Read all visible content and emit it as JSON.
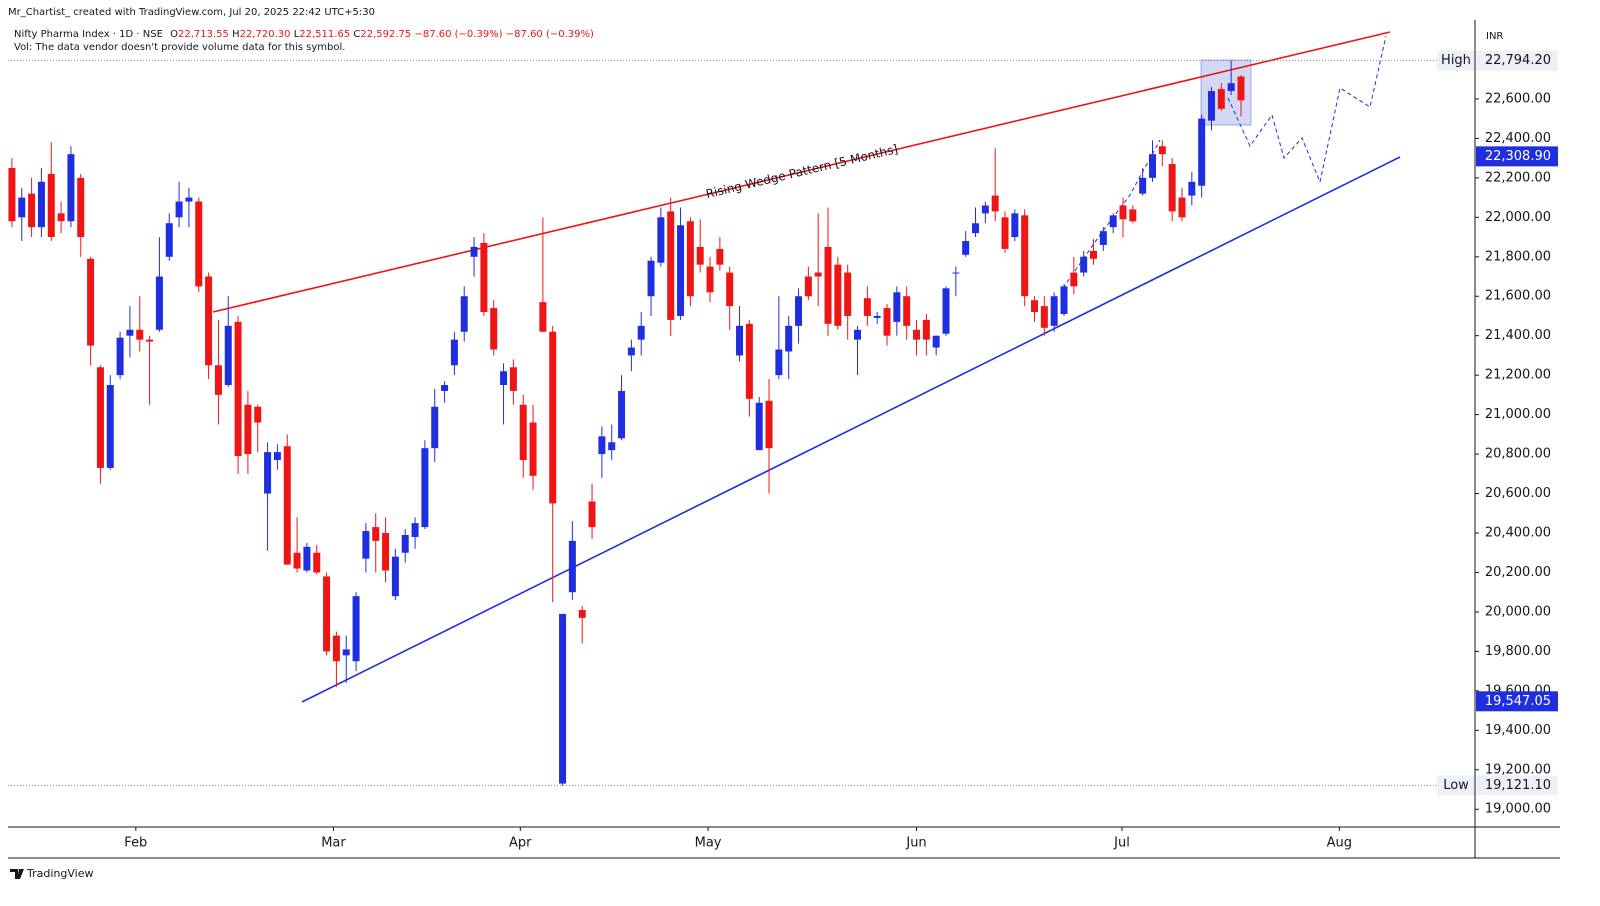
{
  "header": {
    "attribution": "Mr_Chartist_ created with TradingView.com, Jul 20, 2025 22:42 UTC+5:30",
    "symbol": "Nifty Pharma Index · 1D · NSE",
    "ohlc": [
      {
        "key": "O",
        "value": "22,713.55"
      },
      {
        "key": "H",
        "value": "22,720.30"
      },
      {
        "key": "L",
        "value": "22,511.65"
      },
      {
        "key": "C",
        "value": "22,592.75"
      }
    ],
    "change": [
      "−87.60 (−0.39%)",
      "−87.60 (−0.39%)"
    ],
    "vol_note": "Vol: The data vendor doesn't provide volume data for this symbol.",
    "brand": "TradingView"
  },
  "chart_data": {
    "type": "candlestick",
    "currency": "INR",
    "annotation": "Rising Wedge Pattern [5 Months]",
    "up_color": "#1f2fe0",
    "down_color": "#ee1515",
    "x": [
      0,
      1,
      2,
      3,
      4,
      5,
      6,
      7,
      8,
      9,
      10,
      11,
      12,
      13,
      14,
      15,
      16,
      17,
      18,
      19,
      20,
      21,
      22,
      23,
      24,
      25,
      26,
      27,
      28,
      29,
      30,
      31,
      32,
      33,
      34,
      35,
      36,
      37,
      38,
      39,
      40,
      41,
      42,
      43,
      44,
      45,
      46,
      47,
      48,
      49,
      50,
      51,
      52,
      53,
      54,
      55,
      56,
      57,
      58,
      59,
      60,
      61,
      62,
      63,
      64,
      65,
      66,
      67,
      68,
      69,
      70,
      71,
      72,
      73,
      74,
      75,
      76,
      77,
      78,
      79,
      80,
      81,
      82,
      83,
      84,
      85,
      86,
      87,
      88,
      89,
      90,
      91,
      92,
      93,
      94,
      95,
      96,
      97,
      98,
      99,
      100,
      101,
      102,
      103,
      104,
      105,
      106,
      107,
      108,
      109,
      110,
      111,
      112,
      113,
      114,
      115,
      116,
      117,
      118,
      119,
      120,
      121,
      122,
      123,
      124,
      125
    ],
    "open": [
      22250,
      22000,
      22120,
      21950,
      22220,
      22020,
      21980,
      22200,
      21790,
      21240,
      20730,
      21200,
      21400,
      21430,
      21380,
      21430,
      21800,
      22000,
      22080,
      22080,
      21700,
      21250,
      21150,
      21470,
      21050,
      21040,
      20600,
      20770,
      20840,
      20300,
      20210,
      20300,
      20180,
      19880,
      19780,
      19750,
      20270,
      20430,
      20400,
      20080,
      20300,
      20380,
      20430,
      20830,
      21120,
      21250,
      21420,
      21800,
      21870,
      21540,
      21150,
      21240,
      21050,
      20960,
      21570,
      21420,
      19130,
      20100,
      20010,
      20560,
      20800,
      20820,
      20880,
      21300,
      21380,
      21600,
      21770,
      22030,
      21500,
      21980,
      21850,
      21750,
      21840,
      21720,
      21300,
      21460,
      20820,
      21070,
      21200,
      21320,
      21450,
      21700,
      21720,
      21850,
      21760,
      21720,
      21380,
      21590,
      21490,
      21540,
      21470,
      21600,
      21430,
      21480,
      21340,
      21410,
      21720,
      21810,
      21920,
      22020,
      22110,
      22000,
      21900,
      22010,
      21580,
      21550,
      21450,
      21510,
      21720,
      21720,
      21830,
      21860,
      21950,
      22060,
      22040,
      22120,
      22200,
      22360,
      22270,
      22100,
      22110,
      22160,
      22490,
      22650,
      22640,
      22713.55
    ],
    "high": [
      22300,
      22150,
      22200,
      22250,
      22380,
      22080,
      22360,
      22220,
      21800,
      21250,
      21200,
      21420,
      21550,
      21600,
      21400,
      21900,
      22020,
      22180,
      22150,
      22100,
      21720,
      21480,
      21600,
      21500,
      21120,
      21050,
      20860,
      20850,
      20900,
      20480,
      20350,
      20340,
      20200,
      19900,
      19880,
      20100,
      20450,
      20500,
      20480,
      20320,
      20420,
      20480,
      20870,
      21130,
      21170,
      21420,
      21650,
      21900,
      21920,
      21580,
      21260,
      21280,
      21100,
      21050,
      22000,
      21450,
      19990,
      20460,
      20030,
      20650,
      20940,
      20950,
      21200,
      21380,
      21520,
      21800,
      22050,
      22100,
      22050,
      22000,
      21990,
      21800,
      21900,
      21750,
      21550,
      21480,
      21090,
      21180,
      21600,
      21500,
      21640,
      21750,
      22020,
      22050,
      21800,
      21760,
      21450,
      21650,
      21520,
      21560,
      21650,
      21650,
      21480,
      21510,
      21400,
      21650,
      21750,
      21930,
      22050,
      22080,
      22350,
      22030,
      22040,
      22040,
      21600,
      21600,
      21620,
      21660,
      21800,
      21830,
      21890,
      21950,
      22020,
      22100,
      22060,
      22250,
      22390,
      22390,
      22300,
      22150,
      22230,
      22520,
      22660,
      22680,
      22794.2,
      22720.3
    ],
    "low": [
      21950,
      21880,
      21900,
      21900,
      21880,
      21920,
      21950,
      21800,
      21250,
      20650,
      20720,
      21180,
      21290,
      21320,
      21050,
      21420,
      21780,
      21950,
      21950,
      21620,
      21180,
      20950,
      21140,
      20700,
      20700,
      20810,
      20310,
      20720,
      20240,
      20200,
      20200,
      20190,
      19780,
      19620,
      19640,
      19700,
      20200,
      20200,
      20150,
      20060,
      20250,
      20320,
      20420,
      20760,
      21060,
      21200,
      21370,
      21700,
      21500,
      21300,
      20950,
      21050,
      20680,
      20620,
      21420,
      20050,
      19121.1,
      20060,
      19840,
      20370,
      20680,
      20770,
      20870,
      21220,
      21300,
      21500,
      21750,
      21400,
      21480,
      21550,
      21720,
      21570,
      21730,
      21430,
      21270,
      20990,
      20820,
      20600,
      21180,
      21180,
      21360,
      21580,
      21550,
      21400,
      21430,
      21380,
      21200,
      21450,
      21460,
      21350,
      21400,
      21380,
      21300,
      21300,
      21300,
      21400,
      21600,
      21800,
      21900,
      21970,
      21980,
      21820,
      21880,
      21550,
      21470,
      21400,
      21420,
      21500,
      21610,
      21700,
      21760,
      21830,
      21920,
      21900,
      21970,
      22110,
      22180,
      22260,
      21980,
      21980,
      22060,
      22100,
      22440,
      22540,
      22620,
      22511.65
    ],
    "close": [
      21980,
      22100,
      21950,
      22180,
      21900,
      21980,
      22320,
      21900,
      21350,
      20730,
      21150,
      21390,
      21430,
      21380,
      21370,
      21700,
      21970,
      22080,
      22100,
      21650,
      21250,
      21100,
      21450,
      20790,
      20800,
      20960,
      20810,
      20810,
      20240,
      20220,
      20330,
      20200,
      19800,
      19750,
      19810,
      20080,
      20410,
      20360,
      20210,
      20280,
      20390,
      20450,
      20830,
      21040,
      21150,
      21380,
      21600,
      21850,
      21520,
      21330,
      21220,
      21120,
      20770,
      20690,
      21420,
      20550,
      19990,
      20360,
      19970,
      20430,
      20890,
      20860,
      21120,
      21340,
      21450,
      21780,
      22000,
      21480,
      21960,
      21600,
      21760,
      21620,
      21760,
      21550,
      21450,
      21080,
      21060,
      20830,
      21330,
      21450,
      21600,
      21600,
      21700,
      21460,
      21450,
      21500,
      21430,
      21500,
      21500,
      21400,
      21620,
      21450,
      21380,
      21380,
      21400,
      21640,
      21720,
      21880,
      21970,
      22060,
      22030,
      21840,
      22020,
      21600,
      21520,
      21440,
      21600,
      21650,
      21650,
      21800,
      21790,
      21930,
      22010,
      21990,
      21980,
      22200,
      22320,
      22320,
      22030,
      22000,
      22180,
      22500,
      22640,
      22550,
      22680,
      22592.75
    ],
    "xlim": [
      -0.4,
      148.8
    ],
    "xticks": [
      {
        "value": 12.6,
        "label": "Feb"
      },
      {
        "value": 32.7,
        "label": "Mar"
      },
      {
        "value": 51.7,
        "label": "Apr"
      },
      {
        "value": 70.8,
        "label": "May"
      },
      {
        "value": 92,
        "label": "Jun"
      },
      {
        "value": 112.9,
        "label": "Jul"
      },
      {
        "value": 135,
        "label": "Aug"
      }
    ],
    "ylim": [
      18910,
      23000
    ],
    "yticks": [
      {
        "value": 19000,
        "label": "19,000.00"
      },
      {
        "value": 19200,
        "label": "19,200.00"
      },
      {
        "value": 19400,
        "label": "19,400.00"
      },
      {
        "value": 19600,
        "label": "19,600.00"
      },
      {
        "value": 19800,
        "label": "19,800.00"
      },
      {
        "value": 20000,
        "label": "20,000.00"
      },
      {
        "value": 20200,
        "label": "20,200.00"
      },
      {
        "value": 20400,
        "label": "20,400.00"
      },
      {
        "value": 20600,
        "label": "20,600.00"
      },
      {
        "value": 20800,
        "label": "20,800.00"
      },
      {
        "value": 21000,
        "label": "21,000.00"
      },
      {
        "value": 21200,
        "label": "21,200.00"
      },
      {
        "value": 21400,
        "label": "21,400.00"
      },
      {
        "value": 21600,
        "label": "21,600.00"
      },
      {
        "value": 21800,
        "label": "21,800.00"
      },
      {
        "value": 22000,
        "label": "22,000.00"
      },
      {
        "value": 22200,
        "label": "22,200.00"
      },
      {
        "value": 22400,
        "label": "22,400.00"
      },
      {
        "value": 22600,
        "label": "22,600.00"
      }
    ],
    "markers": [
      {
        "tag": "High",
        "value": 22794.2,
        "label": "22,794.20",
        "style": "plain",
        "guide": true
      },
      {
        "value": 22308.9,
        "label": "22,308.90",
        "style": "filled"
      },
      {
        "value": 19547.05,
        "label": "19,547.05",
        "style": "filled"
      },
      {
        "tag": "Low",
        "value": 19121.1,
        "label": "19,121.10",
        "style": "plain",
        "guide": true
      }
    ]
  }
}
